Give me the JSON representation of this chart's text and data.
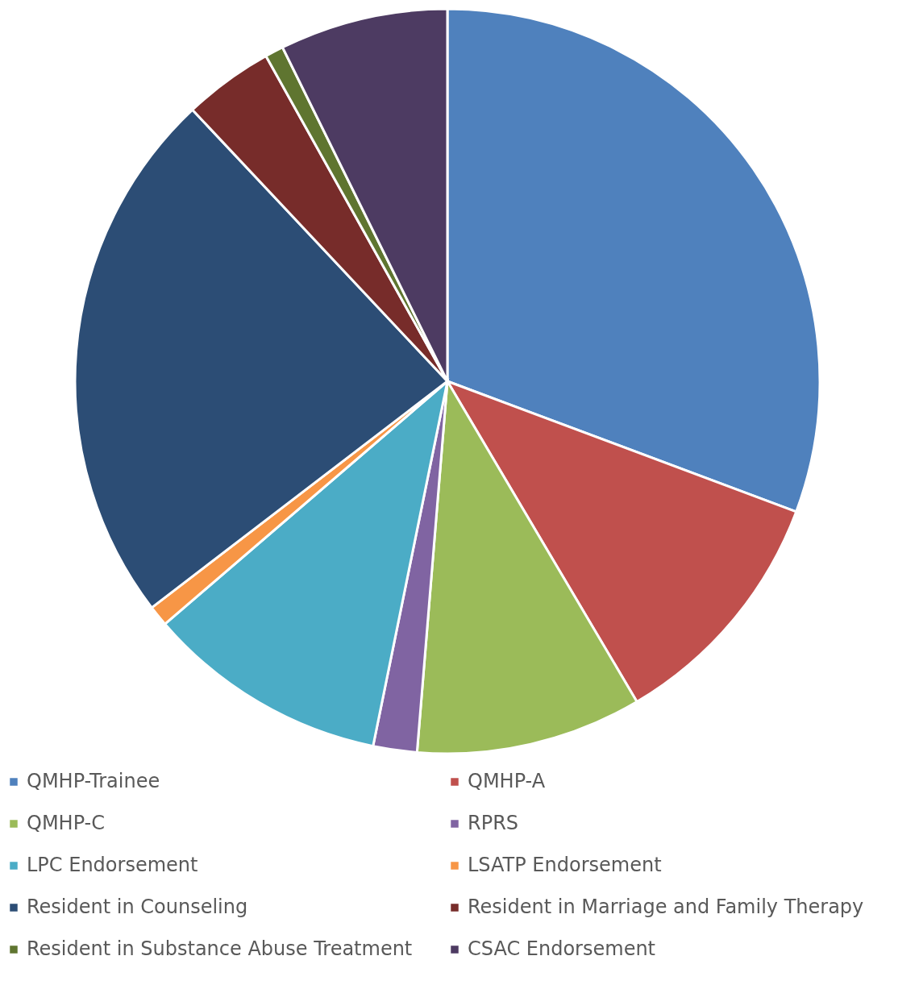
{
  "chart_data": {
    "type": "pie",
    "categories": [
      "QMHP-Trainee",
      "QMHP-A",
      "QMHP-C",
      "RPRS",
      "LPC Endorsement",
      "LSATP Endorsement",
      "Resident in Counseling",
      "Resident in Marriage and Family Therapy",
      "Resident in Substance Abuse Treatment",
      "CSAC Endorsement"
    ],
    "values": [
      30.7,
      10.8,
      9.8,
      1.9,
      10.5,
      0.9,
      23.4,
      3.9,
      0.8,
      7.3
    ],
    "colors": [
      "#4f81bd",
      "#c0504d",
      "#9bbb59",
      "#8064a2",
      "#4bacc6",
      "#f79646",
      "#2c4d75",
      "#772c2a",
      "#5f7530",
      "#4d3b62"
    ],
    "legend": "bottom"
  }
}
